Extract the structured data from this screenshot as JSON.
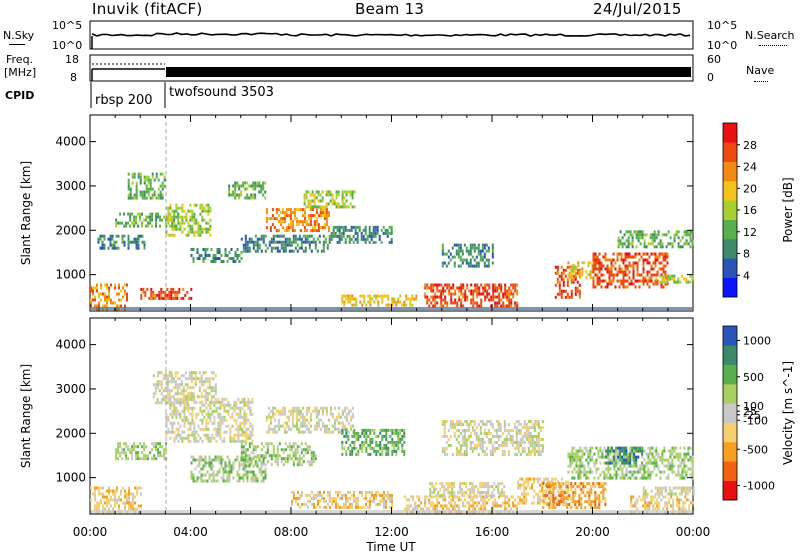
{
  "header": {
    "title": "Inuvik (fitACF)",
    "beam": "Beam 13",
    "date": "24/Jul/2015"
  },
  "summary_labels": {
    "nsky": "N.Sky",
    "nsearch": "N.Search",
    "freq": "Freq.",
    "freq_unit": "[MHz]",
    "nave": "Nave",
    "cpid": "CPID"
  },
  "summary_ticks": {
    "noise_top": "10^5",
    "noise_bottom": "10^0",
    "freq_top": "18",
    "freq_bottom": "8",
    "nave_top": "60",
    "nave_bottom": "0"
  },
  "cpid_programs": [
    "rbsp 200",
    "twofsound 3503"
  ],
  "colors": {
    "power_scale": [
      "#0a14ff",
      "#2a55b8",
      "#3f8a6a",
      "#58b04a",
      "#a8cf32",
      "#f2c31a",
      "#f58a12",
      "#ee4a10",
      "#e81010"
    ],
    "velocity_scale": [
      "#e81010",
      "#f26010",
      "#f7a020",
      "#f6d070",
      "#c8c8c8",
      "#a8d060",
      "#58b04a",
      "#3a8a6a",
      "#2a55b8"
    ]
  },
  "chart_data": [
    {
      "type": "heatmap",
      "title": "Inuvik (fitACF)",
      "subtitle": "Beam 13",
      "xlabel": "",
      "ylabel": "Slant Range [km]",
      "x_ticks": [
        "00:00",
        "04:00",
        "08:00",
        "12:00",
        "16:00",
        "20:00",
        "00:00"
      ],
      "y_ticks": [
        1000,
        2000,
        3000,
        4000
      ],
      "ylim": [
        180,
        4600
      ],
      "colorbar_label": "Power [dB]",
      "colorbar_ticks": [
        4,
        8,
        12,
        16,
        20,
        24,
        28
      ],
      "colorbar_range": [
        0,
        32
      ],
      "patches": [
        {
          "t": [
            0.0,
            1.5
          ],
          "r": [
            250,
            800
          ],
          "v": 24
        },
        {
          "t": [
            0.3,
            2.2
          ],
          "r": [
            1600,
            1900
          ],
          "v": 8
        },
        {
          "t": [
            1.0,
            3.5
          ],
          "r": [
            2100,
            2400
          ],
          "v": 12
        },
        {
          "t": [
            1.5,
            3.0
          ],
          "r": [
            2700,
            3300
          ],
          "v": 12
        },
        {
          "t": [
            2.0,
            4.0
          ],
          "r": [
            450,
            700
          ],
          "v": 26
        },
        {
          "t": [
            3.0,
            4.8
          ],
          "r": [
            1900,
            2600
          ],
          "v": 16
        },
        {
          "t": [
            4.0,
            6.0
          ],
          "r": [
            1300,
            1600
          ],
          "v": 10
        },
        {
          "t": [
            5.5,
            7.0
          ],
          "r": [
            2700,
            3100
          ],
          "v": 14
        },
        {
          "t": [
            6.0,
            9.5
          ],
          "r": [
            1500,
            1900
          ],
          "v": 10
        },
        {
          "t": [
            7.0,
            9.5
          ],
          "r": [
            2000,
            2500
          ],
          "v": 22
        },
        {
          "t": [
            8.5,
            10.5
          ],
          "r": [
            2500,
            2900
          ],
          "v": 16
        },
        {
          "t": [
            9.5,
            12.0
          ],
          "r": [
            1700,
            2100
          ],
          "v": 10
        },
        {
          "t": [
            10.0,
            13.0
          ],
          "r": [
            300,
            550
          ],
          "v": 18
        },
        {
          "t": [
            13.3,
            17.0
          ],
          "r": [
            300,
            800
          ],
          "v": 28
        },
        {
          "t": [
            14.0,
            16.0
          ],
          "r": [
            1200,
            1700
          ],
          "v": 8
        },
        {
          "t": [
            18.5,
            19.5
          ],
          "r": [
            500,
            1200
          ],
          "v": 26
        },
        {
          "t": [
            19.0,
            20.0
          ],
          "r": [
            900,
            1300
          ],
          "v": 20
        },
        {
          "t": [
            20.0,
            23.0
          ],
          "r": [
            700,
            1500
          ],
          "v": 28
        },
        {
          "t": [
            21.0,
            24.0
          ],
          "r": [
            1600,
            2000
          ],
          "v": 12
        },
        {
          "t": [
            22.5,
            24.0
          ],
          "r": [
            800,
            1000
          ],
          "v": 16
        }
      ]
    },
    {
      "type": "heatmap",
      "title": "",
      "xlabel": "Time UT",
      "ylabel": "Slant Range [km]",
      "x_ticks": [
        "00:00",
        "04:00",
        "08:00",
        "12:00",
        "16:00",
        "20:00",
        "00:00"
      ],
      "y_ticks": [
        1000,
        2000,
        3000,
        4000
      ],
      "ylim": [
        180,
        4600
      ],
      "colorbar_label": "Velocity [m s^-1]",
      "colorbar_ticks": [
        -1000,
        -500,
        -100,
        -25,
        25,
        100,
        500,
        1000
      ],
      "colorbar_range": [
        -1200,
        1200
      ],
      "patches": [
        {
          "t": [
            0.0,
            2.0
          ],
          "r": [
            250,
            800
          ],
          "v": -400
        },
        {
          "t": [
            1.0,
            3.0
          ],
          "r": [
            1400,
            1800
          ],
          "v": 150
        },
        {
          "t": [
            2.5,
            5.0
          ],
          "r": [
            2700,
            3400
          ],
          "v": 0
        },
        {
          "t": [
            3.0,
            6.5
          ],
          "r": [
            1800,
            2800
          ],
          "v": 0
        },
        {
          "t": [
            4.0,
            7.0
          ],
          "r": [
            900,
            1500
          ],
          "v": 150
        },
        {
          "t": [
            6.0,
            9.0
          ],
          "r": [
            1300,
            1800
          ],
          "v": 250
        },
        {
          "t": [
            7.0,
            10.5
          ],
          "r": [
            2000,
            2600
          ],
          "v": 0
        },
        {
          "t": [
            8.0,
            12.0
          ],
          "r": [
            300,
            700
          ],
          "v": -150
        },
        {
          "t": [
            10.0,
            12.5
          ],
          "r": [
            1500,
            2100
          ],
          "v": 400
        },
        {
          "t": [
            12.5,
            17.0
          ],
          "r": [
            250,
            600
          ],
          "v": -300
        },
        {
          "t": [
            13.5,
            16.5
          ],
          "r": [
            600,
            900
          ],
          "v": 120
        },
        {
          "t": [
            14.0,
            18.0
          ],
          "r": [
            1500,
            2300
          ],
          "v": 0
        },
        {
          "t": [
            17.0,
            19.0
          ],
          "r": [
            400,
            1000
          ],
          "v": -200
        },
        {
          "t": [
            18.0,
            20.5
          ],
          "r": [
            300,
            900
          ],
          "v": -500
        },
        {
          "t": [
            19.0,
            24.0
          ],
          "r": [
            1000,
            1700
          ],
          "v": 350
        },
        {
          "t": [
            20.5,
            22.0
          ],
          "r": [
            1300,
            1700
          ],
          "v": 900
        },
        {
          "t": [
            21.5,
            24.0
          ],
          "r": [
            200,
            600
          ],
          "v": -350
        },
        {
          "t": [
            22.0,
            24.0
          ],
          "r": [
            600,
            800
          ],
          "v": 0
        }
      ]
    }
  ]
}
